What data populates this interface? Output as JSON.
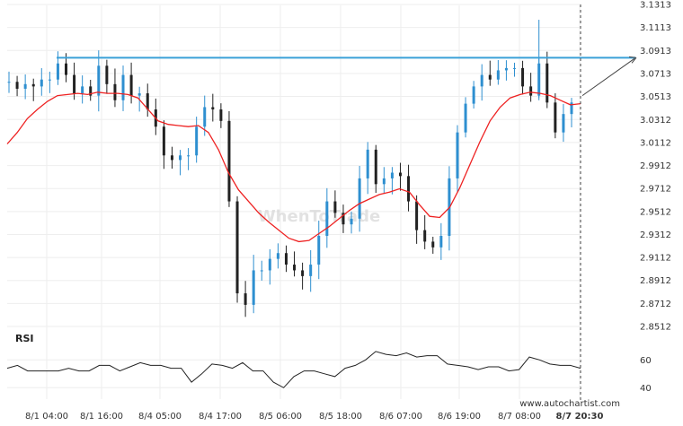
{
  "watermark": "WhenToTrade",
  "credit": "www.autochartist.com",
  "colors": {
    "candle": "#2e8fd0",
    "candle_dark": "#222222",
    "ma": "#ee2222",
    "resistance": "#3aa0d8",
    "rsi": "#222222",
    "grid": "#eeeeee",
    "arrow": "#444444"
  },
  "chart_data": {
    "type": "line",
    "x_ticks": [
      "8/1 04:00",
      "8/1 16:00",
      "8/4 05:00",
      "8/4 17:00",
      "8/5 06:00",
      "8/5 18:00",
      "8/6 07:00",
      "8/6 19:00",
      "8/7 08:00",
      "8/7 20:30"
    ],
    "y_ticks": [
      "3.1313",
      "3.1113",
      "3.0913",
      "3.0713",
      "3.0513",
      "3.0312",
      "3.0112",
      "2.9912",
      "2.9712",
      "2.9512",
      "2.9312",
      "2.9112",
      "2.8912",
      "2.8712",
      "2.8512"
    ],
    "ylim": [
      2.8512,
      3.1313
    ],
    "resistance_level": 3.085,
    "target_level": 3.085,
    "series": [
      {
        "values": [
          3.064,
          3.058,
          3.062,
          3.06,
          3.066,
          3.066,
          3.08,
          3.07,
          3.054,
          3.06,
          3.052,
          3.078,
          3.062,
          3.048,
          3.07,
          3.052,
          3.054,
          3.04,
          3.025,
          3.0,
          2.996,
          3.0,
          3.0,
          3.025,
          3.042,
          3.04,
          3.03,
          2.96,
          2.88,
          2.87,
          2.9,
          2.9,
          2.91,
          2.915,
          2.905,
          2.9,
          2.895,
          2.905,
          2.93,
          2.96,
          2.95,
          2.94,
          2.945,
          2.98,
          3.005,
          2.975,
          2.98,
          2.985,
          2.982,
          2.96,
          2.935,
          2.925,
          2.92,
          2.93,
          2.98,
          3.02,
          3.045,
          3.06,
          3.07,
          3.066,
          3.074,
          3.076,
          3.076,
          3.06,
          3.052,
          3.08,
          3.046,
          3.02,
          3.036,
          3.046
        ]
      },
      {
        "values": [
          3.01,
          3.02,
          3.032,
          3.04,
          3.047,
          3.052,
          3.053,
          3.054,
          3.053,
          3.055,
          3.054,
          3.054,
          3.053,
          3.05,
          3.04,
          3.03,
          3.027,
          3.026,
          3.025,
          3.026,
          3.02,
          3.005,
          2.985,
          2.97,
          2.96,
          2.95,
          2.942,
          2.935,
          2.928,
          2.925,
          2.926,
          2.932,
          2.938,
          2.945,
          2.952,
          2.958,
          2.962,
          2.966,
          2.968,
          2.971,
          2.968,
          2.957,
          2.947,
          2.946,
          2.955,
          2.972,
          2.992,
          3.012,
          3.03,
          3.042,
          3.05,
          3.053,
          3.055,
          3.054,
          3.052,
          3.048,
          3.044,
          3.045
        ]
      }
    ],
    "rsi": {
      "label": "RSI",
      "y_ticks": [
        "60",
        "40"
      ],
      "ylim": [
        35,
        75
      ],
      "values": [
        54,
        56,
        52,
        52,
        52,
        52,
        54,
        52,
        52,
        56,
        56,
        52,
        55,
        58,
        56,
        56,
        54,
        54,
        44,
        50,
        57,
        56,
        54,
        58,
        52,
        52,
        44,
        40,
        48,
        52,
        52,
        50,
        48,
        54,
        56,
        60,
        66,
        64,
        63,
        65,
        62,
        63,
        63,
        57,
        56,
        55,
        53,
        55,
        55,
        52,
        53,
        62,
        60,
        57,
        56,
        56,
        54
      ]
    }
  }
}
